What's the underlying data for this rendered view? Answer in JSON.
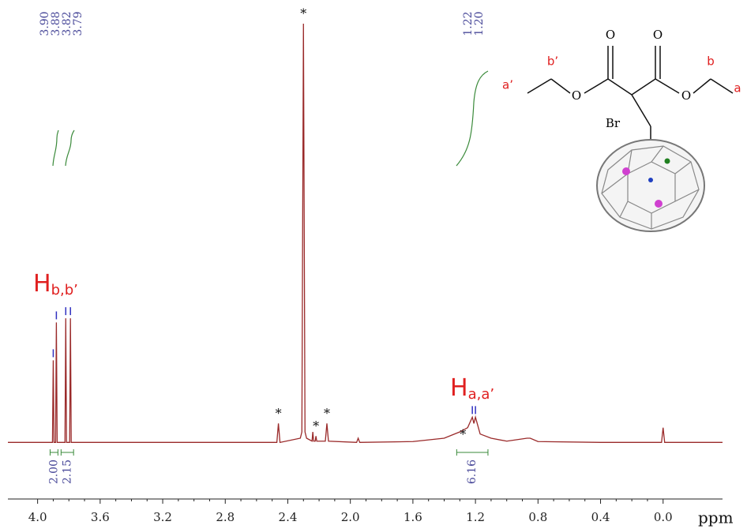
{
  "chart_data": {
    "type": "line",
    "x_label": "ppm",
    "xlim": [
      4.19,
      -0.38
    ],
    "ylim": [
      0,
      100
    ],
    "xticks": [
      {
        "value": 4,
        "label": "4.0"
      },
      3.6,
      3.2,
      2.8,
      2.4,
      {
        "value": 2,
        "label": "2.0"
      },
      1.6,
      1.2,
      0.8,
      0.4,
      {
        "value": 0,
        "label": "0.0"
      }
    ],
    "series": [
      {
        "color": "#9a2a2a",
        "x": [
          4.19,
          3.95,
          3.905,
          3.9,
          3.895,
          3.885,
          3.88,
          3.875,
          3.825,
          3.82,
          3.815,
          3.795,
          3.79,
          3.785,
          3.7,
          2.8,
          2.47,
          2.46,
          2.45,
          2.32,
          2.31,
          2.3,
          2.29,
          2.28,
          2.245,
          2.24,
          2.235,
          2.225,
          2.22,
          2.215,
          2.16,
          2.15,
          2.14,
          1.96,
          1.95,
          1.94,
          1.6,
          1.4,
          1.3,
          1.25,
          1.22,
          1.21,
          1.2,
          1.17,
          1.1,
          1.0,
          0.87,
          0.85,
          0.8,
          0.4,
          0.01,
          0.0,
          -0.01,
          -0.38
        ],
        "values": [
          0.5,
          0.5,
          0.5,
          20,
          0.5,
          0.5,
          29,
          0.5,
          0.5,
          30,
          0.5,
          0.5,
          30,
          0.5,
          0.5,
          0.5,
          0.5,
          5,
          0.5,
          1.5,
          3,
          100,
          3,
          1.5,
          0.8,
          3,
          0.8,
          0.8,
          2,
          0.8,
          0.8,
          5,
          0.8,
          0.5,
          1.5,
          0.5,
          0.7,
          1.5,
          3,
          4,
          6.5,
          5,
          6.5,
          2.5,
          1.5,
          0.8,
          1.5,
          1.5,
          0.7,
          0.5,
          0.5,
          4,
          0.5,
          0.5
        ]
      }
    ],
    "peak_labels": [
      {
        "value": 3.9,
        "label": "3.90"
      },
      3.88,
      3.82,
      3.79,
      1.22,
      {
        "value": 1.2,
        "label": "1.20"
      }
    ],
    "integrals": [
      {
        "value": 2,
        "label": "2.00",
        "range": [
          3.92,
          3.87
        ]
      },
      {
        "value": 2.15,
        "range": [
          3.85,
          3.77
        ]
      },
      {
        "value": 6.16,
        "range": [
          1.32,
          1.12
        ]
      }
    ],
    "asterisks": {
      "label": "*",
      "x": [
        2.3,
        2.46,
        2.22,
        2.15,
        1.28
      ]
    },
    "annotations": [
      {
        "text": "H",
        "sub": "b,b’"
      },
      {
        "text": "H",
        "sub": "a,a’"
      }
    ]
  },
  "structure": {
    "labels": [
      "O",
      "O",
      "a’",
      "b’",
      "b",
      "a",
      "Br"
    ]
  }
}
